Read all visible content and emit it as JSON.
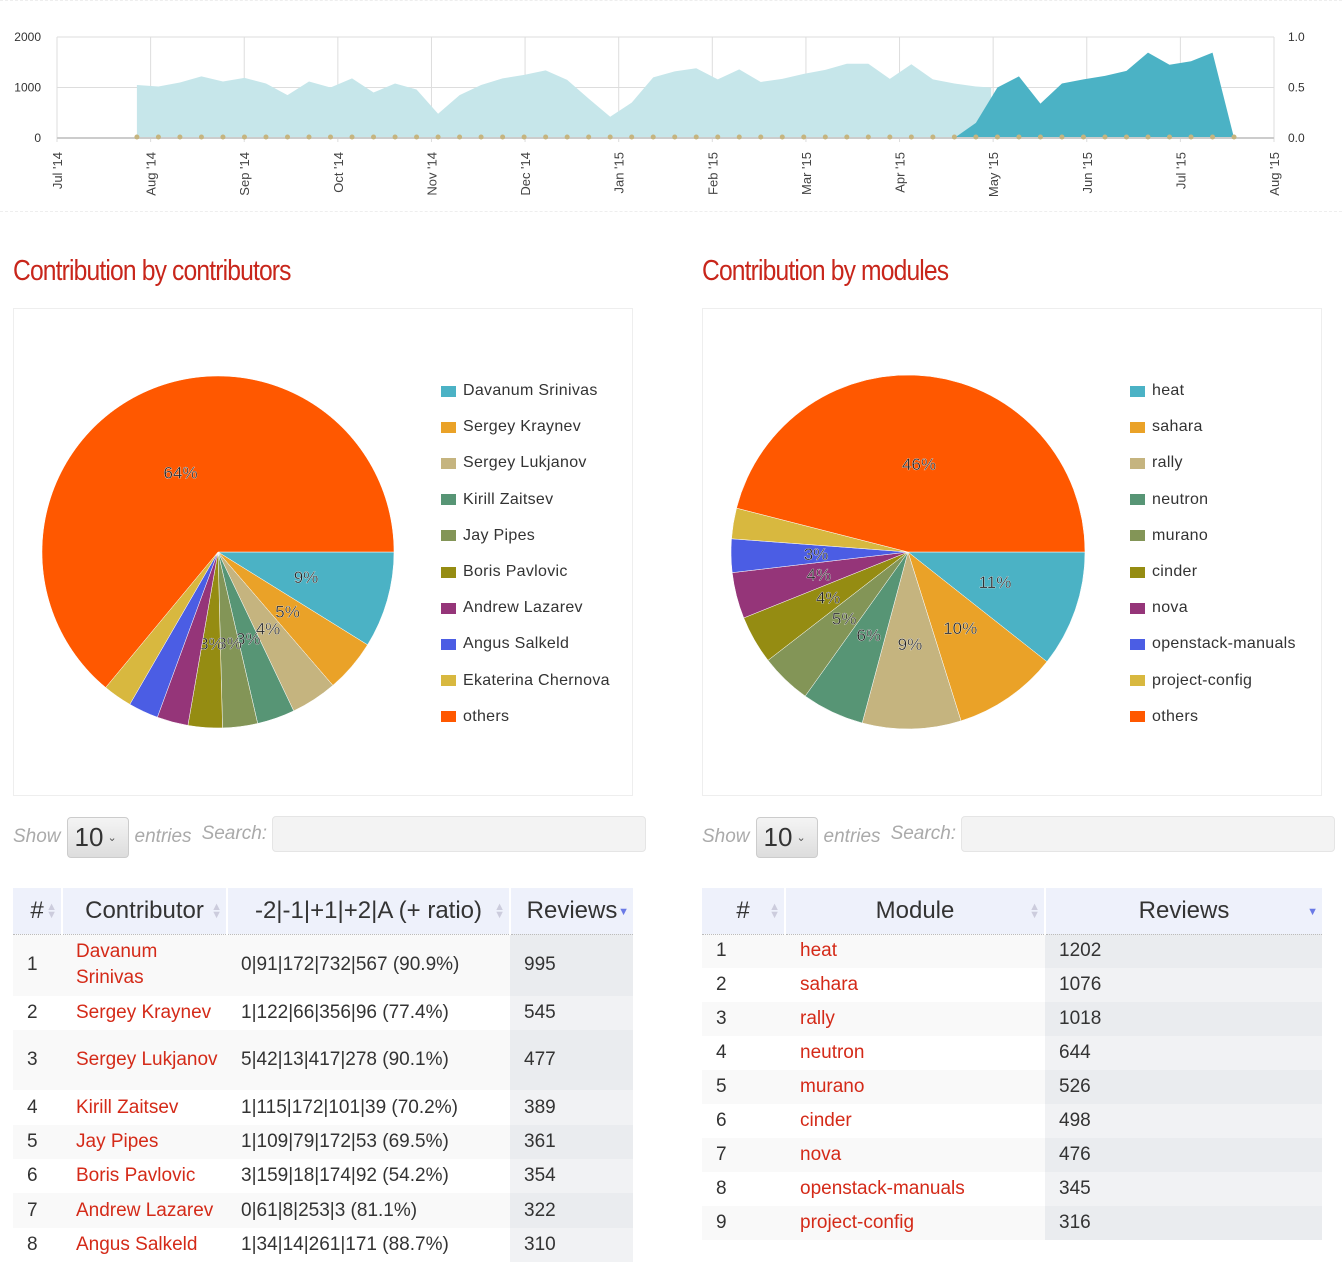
{
  "timeline": {
    "left_axis": {
      "ticks": [
        "0",
        "1000",
        "2000"
      ],
      "range": [
        0,
        2000
      ]
    },
    "right_axis": {
      "ticks": [
        "0.0",
        "0.5",
        "1.0"
      ],
      "range": [
        0,
        1
      ]
    },
    "x_ticks": [
      "Jul '14",
      "Aug '14",
      "Sep '14",
      "Oct '14",
      "Nov '14",
      "Dec '14",
      "Jan '15",
      "Feb '15",
      "Mar '15",
      "Apr '15",
      "May '15",
      "Jun '15",
      "Jul '15",
      "Aug '15"
    ],
    "x_range": [
      "2014-07-01",
      "2015-08-01"
    ],
    "colors": {
      "light": "#c6e6ea",
      "dark": "#4bb2c5",
      "markers": "#c5b47f"
    },
    "series_light": [
      [
        "2014-07-27",
        1050
      ],
      [
        "2014-08-03",
        1020
      ],
      [
        "2014-08-10",
        1100
      ],
      [
        "2014-08-17",
        1220
      ],
      [
        "2014-08-24",
        1120
      ],
      [
        "2014-08-31",
        1190
      ],
      [
        "2014-09-07",
        1080
      ],
      [
        "2014-09-14",
        850
      ],
      [
        "2014-09-21",
        1120
      ],
      [
        "2014-09-28",
        1000
      ],
      [
        "2014-10-05",
        1180
      ],
      [
        "2014-10-12",
        900
      ],
      [
        "2014-10-19",
        1080
      ],
      [
        "2014-10-26",
        960
      ],
      [
        "2014-11-02",
        480
      ],
      [
        "2014-11-09",
        850
      ],
      [
        "2014-11-16",
        1050
      ],
      [
        "2014-11-23",
        1180
      ],
      [
        "2014-11-30",
        1250
      ],
      [
        "2014-12-07",
        1340
      ],
      [
        "2014-12-14",
        1150
      ],
      [
        "2014-12-21",
        780
      ],
      [
        "2014-12-28",
        420
      ],
      [
        "2015-01-04",
        700
      ],
      [
        "2015-01-11",
        1200
      ],
      [
        "2015-01-18",
        1320
      ],
      [
        "2015-01-25",
        1380
      ],
      [
        "2015-02-01",
        1160
      ],
      [
        "2015-02-08",
        1360
      ],
      [
        "2015-02-15",
        1110
      ],
      [
        "2015-02-22",
        1170
      ],
      [
        "2015-03-01",
        1270
      ],
      [
        "2015-03-08",
        1350
      ],
      [
        "2015-03-15",
        1470
      ],
      [
        "2015-03-22",
        1470
      ],
      [
        "2015-03-29",
        1170
      ],
      [
        "2015-04-05",
        1460
      ],
      [
        "2015-04-12",
        1160
      ],
      [
        "2015-04-19",
        1080
      ],
      [
        "2015-04-26",
        1020
      ],
      [
        "2015-05-01",
        1000
      ]
    ],
    "series_dark": [
      [
        "2015-04-19",
        0
      ],
      [
        "2015-04-26",
        300
      ],
      [
        "2015-05-03",
        1000
      ],
      [
        "2015-05-10",
        1220
      ],
      [
        "2015-05-17",
        680
      ],
      [
        "2015-05-24",
        1080
      ],
      [
        "2015-05-31",
        1160
      ],
      [
        "2015-06-07",
        1230
      ],
      [
        "2015-06-14",
        1330
      ],
      [
        "2015-06-21",
        1690
      ],
      [
        "2015-06-28",
        1450
      ],
      [
        "2015-07-05",
        1520
      ],
      [
        "2015-07-12",
        1690
      ],
      [
        "2015-07-19",
        0
      ]
    ],
    "marker_range": [
      "2014-07-27",
      "2015-07-19"
    ]
  },
  "contributors": {
    "title": "Contribution by contributors",
    "chart_data": {
      "type": "pie",
      "labels": [
        "Davanum Srinivas",
        "Sergey Kraynev",
        "Sergey Lukjanov",
        "Kirill Zaitsev",
        "Jay Pipes",
        "Boris Pavlovic",
        "Andrew Lazarev",
        "Angus Salkeld",
        "Ekaterina Chernova",
        "others"
      ],
      "values": [
        995,
        545,
        477,
        389,
        361,
        354,
        322,
        310,
        300,
        7200
      ],
      "data_labels": [
        "9%",
        "5%",
        "4%",
        "3%",
        "3%",
        "3%",
        "",
        "",
        "",
        "64%"
      ],
      "colors": [
        "#4bb2c5",
        "#eaa228",
        "#c5b47f",
        "#579575",
        "#839557",
        "#958c12",
        "#953579",
        "#4b5de4",
        "#d8b83f",
        "#ff5800"
      ],
      "legend": "right"
    },
    "controls": {
      "show": "Show",
      "length": "10",
      "entries": "entries",
      "search": "Search:"
    },
    "columns": [
      "#",
      "Contributor",
      "-2|-1|+1|+2|A (+ ratio)",
      "Reviews"
    ],
    "rows": [
      [
        "1",
        "Davanum Srinivas",
        "0|91|172|732|567 (90.9%)",
        "995"
      ],
      [
        "2",
        "Sergey Kraynev",
        "1|122|66|356|96 (77.4%)",
        "545"
      ],
      [
        "3",
        "Sergey Lukjanov",
        "5|42|13|417|278 (90.1%)",
        "477"
      ],
      [
        "4",
        "Kirill Zaitsev",
        "1|115|172|101|39 (70.2%)",
        "389"
      ],
      [
        "5",
        "Jay Pipes",
        "1|109|79|172|53 (69.5%)",
        "361"
      ],
      [
        "6",
        "Boris Pavlovic",
        "3|159|18|174|92 (54.2%)",
        "354"
      ],
      [
        "7",
        "Andrew Lazarev",
        "0|61|8|253|3 (81.1%)",
        "322"
      ],
      [
        "8",
        "Angus Salkeld",
        "1|34|14|261|171 (88.7%)",
        "310"
      ]
    ]
  },
  "modules": {
    "title": "Contribution by modules",
    "chart_data": {
      "type": "pie",
      "labels": [
        "heat",
        "sahara",
        "rally",
        "neutron",
        "murano",
        "cinder",
        "nova",
        "openstack-manuals",
        "project-config",
        "others"
      ],
      "values": [
        1202,
        1076,
        1018,
        644,
        526,
        498,
        476,
        345,
        316,
        5200
      ],
      "data_labels": [
        "11%",
        "10%",
        "9%",
        "6%",
        "5%",
        "4%",
        "4%",
        "3%",
        "",
        "46%"
      ],
      "colors": [
        "#4bb2c5",
        "#eaa228",
        "#c5b47f",
        "#579575",
        "#839557",
        "#958c12",
        "#953579",
        "#4b5de4",
        "#d8b83f",
        "#ff5800"
      ],
      "legend": "right"
    },
    "controls": {
      "show": "Show",
      "length": "10",
      "entries": "entries",
      "search": "Search:"
    },
    "columns": [
      "#",
      "Module",
      "Reviews"
    ],
    "rows": [
      [
        "1",
        "heat",
        "1202"
      ],
      [
        "2",
        "sahara",
        "1076"
      ],
      [
        "3",
        "rally",
        "1018"
      ],
      [
        "4",
        "neutron",
        "644"
      ],
      [
        "5",
        "murano",
        "526"
      ],
      [
        "6",
        "cinder",
        "498"
      ],
      [
        "7",
        "nova",
        "476"
      ],
      [
        "8",
        "openstack-manuals",
        "345"
      ],
      [
        "9",
        "project-config",
        "316"
      ]
    ]
  }
}
